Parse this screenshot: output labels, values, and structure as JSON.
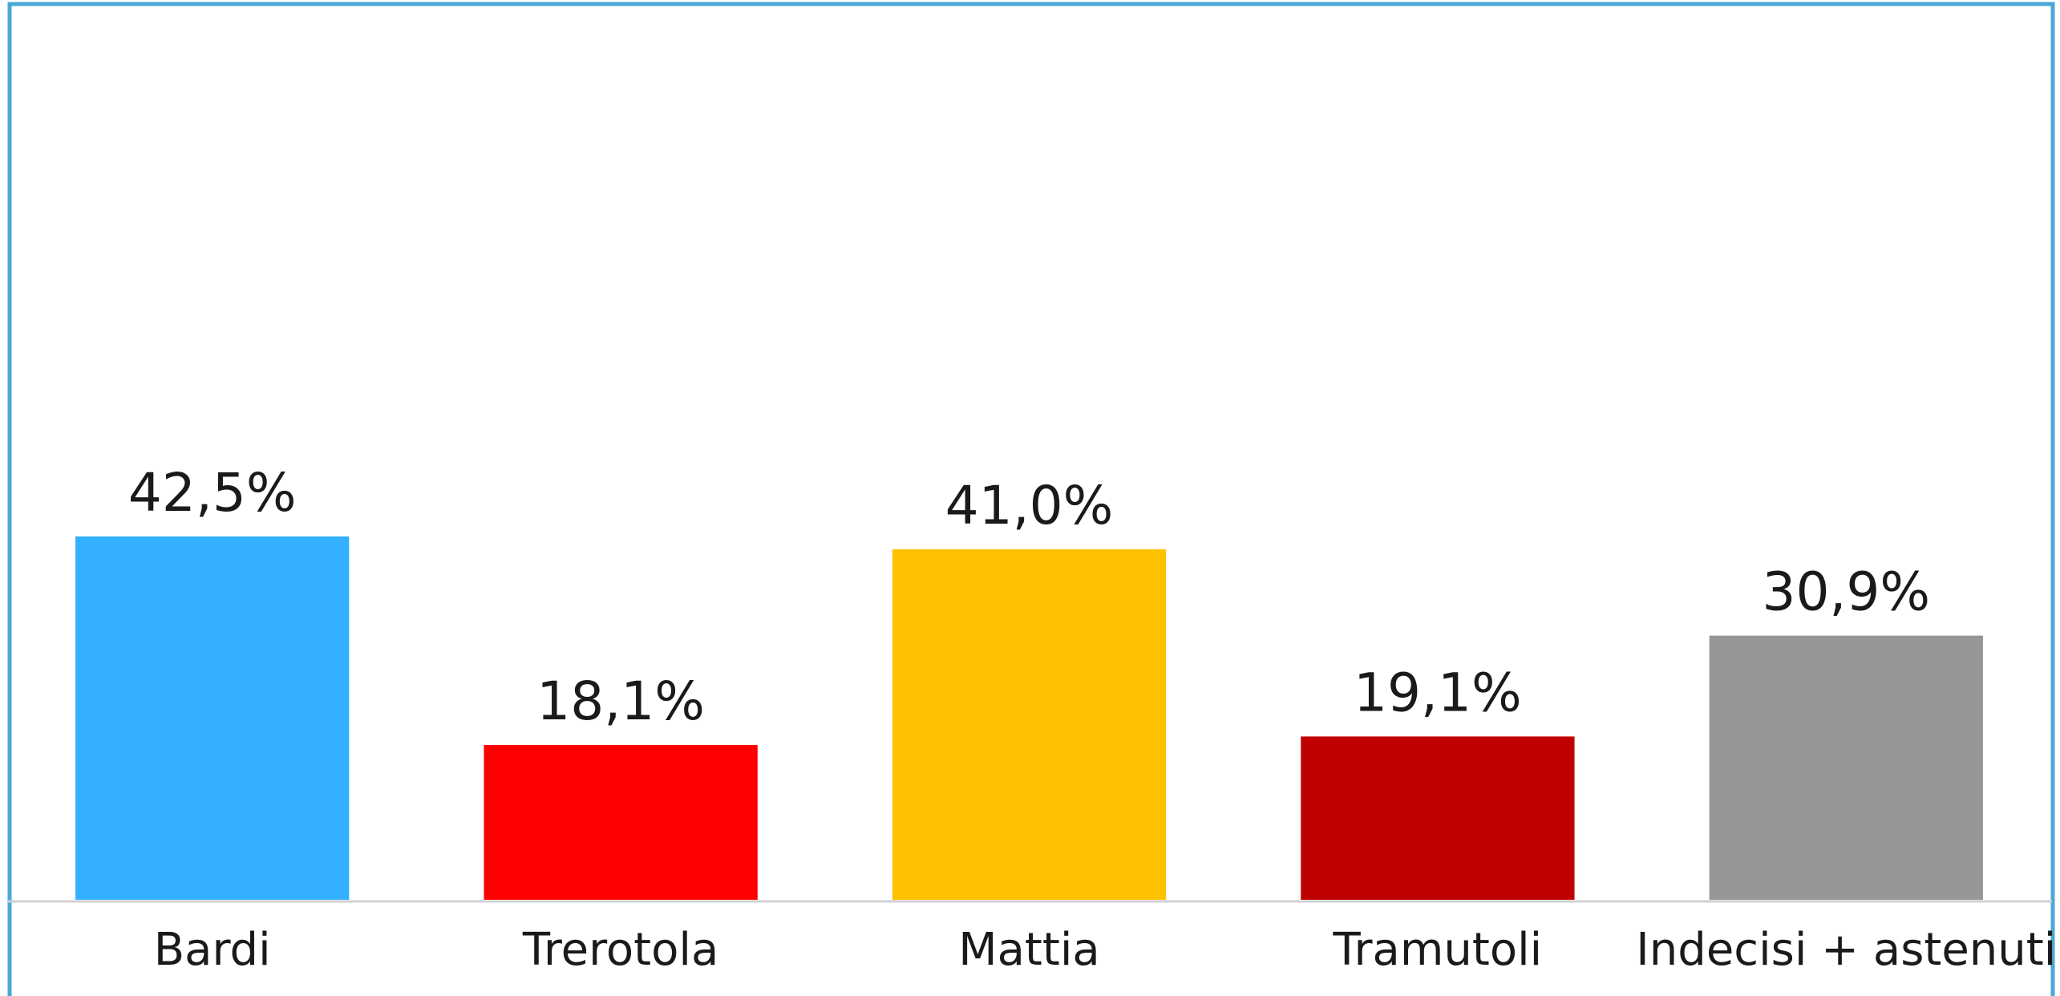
{
  "chart_data": {
    "type": "bar",
    "categories": [
      "Bardi",
      "Trerotola",
      "Mattia",
      "Tramutoli",
      "Indecisi + astenuti"
    ],
    "values": [
      42.5,
      18.1,
      41.0,
      19.1,
      30.9
    ],
    "value_labels": [
      "42,5%",
      "18,1%",
      "41,0%",
      "19,1%",
      "30,9%"
    ],
    "colors": [
      "#33b0ff",
      "#ff0000",
      "#ffc000",
      "#c00000",
      "#969696"
    ],
    "ylim": [
      0,
      100
    ]
  }
}
